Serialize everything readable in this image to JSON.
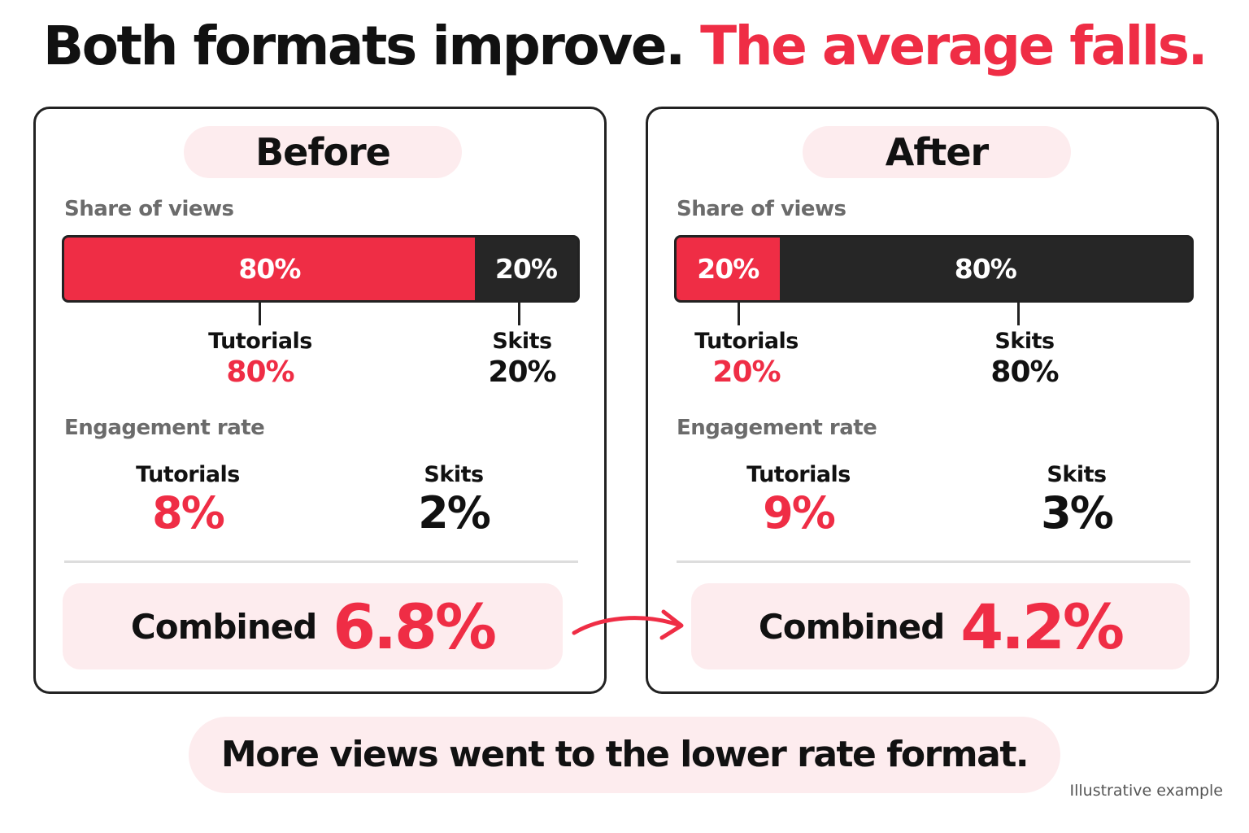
{
  "headline": {
    "part1": "Both formats improve.",
    "part2": "The average falls.",
    "accent_color": "#ef2d45"
  },
  "panels": [
    {
      "title": "Before",
      "share_label": "Share of views",
      "share": [
        {
          "name": "Tutorials",
          "percent_label": "80%",
          "value": 80,
          "color": "#ef2d45"
        },
        {
          "name": "Skits",
          "percent_label": "20%",
          "value": 20,
          "color": "#262626"
        }
      ],
      "engagement_label": "Engagement rate",
      "engagement": [
        {
          "name": "Tutorials",
          "value": "8%"
        },
        {
          "name": "Skits",
          "value": "2%"
        }
      ],
      "combined_label": "Combined",
      "combined_value": "6.8%"
    },
    {
      "title": "After",
      "share_label": "Share of views",
      "share": [
        {
          "name": "Tutorials",
          "percent_label": "20%",
          "value": 20,
          "color": "#ef2d45"
        },
        {
          "name": "Skits",
          "percent_label": "80%",
          "value": 80,
          "color": "#262626"
        }
      ],
      "engagement_label": "Engagement rate",
      "engagement": [
        {
          "name": "Tutorials",
          "value": "9%"
        },
        {
          "name": "Skits",
          "value": "3%"
        }
      ],
      "combined_label": "Combined",
      "combined_value": "4.2%"
    }
  ],
  "footer": "More views went to the lower rate format.",
  "note": "Illustrative example"
}
